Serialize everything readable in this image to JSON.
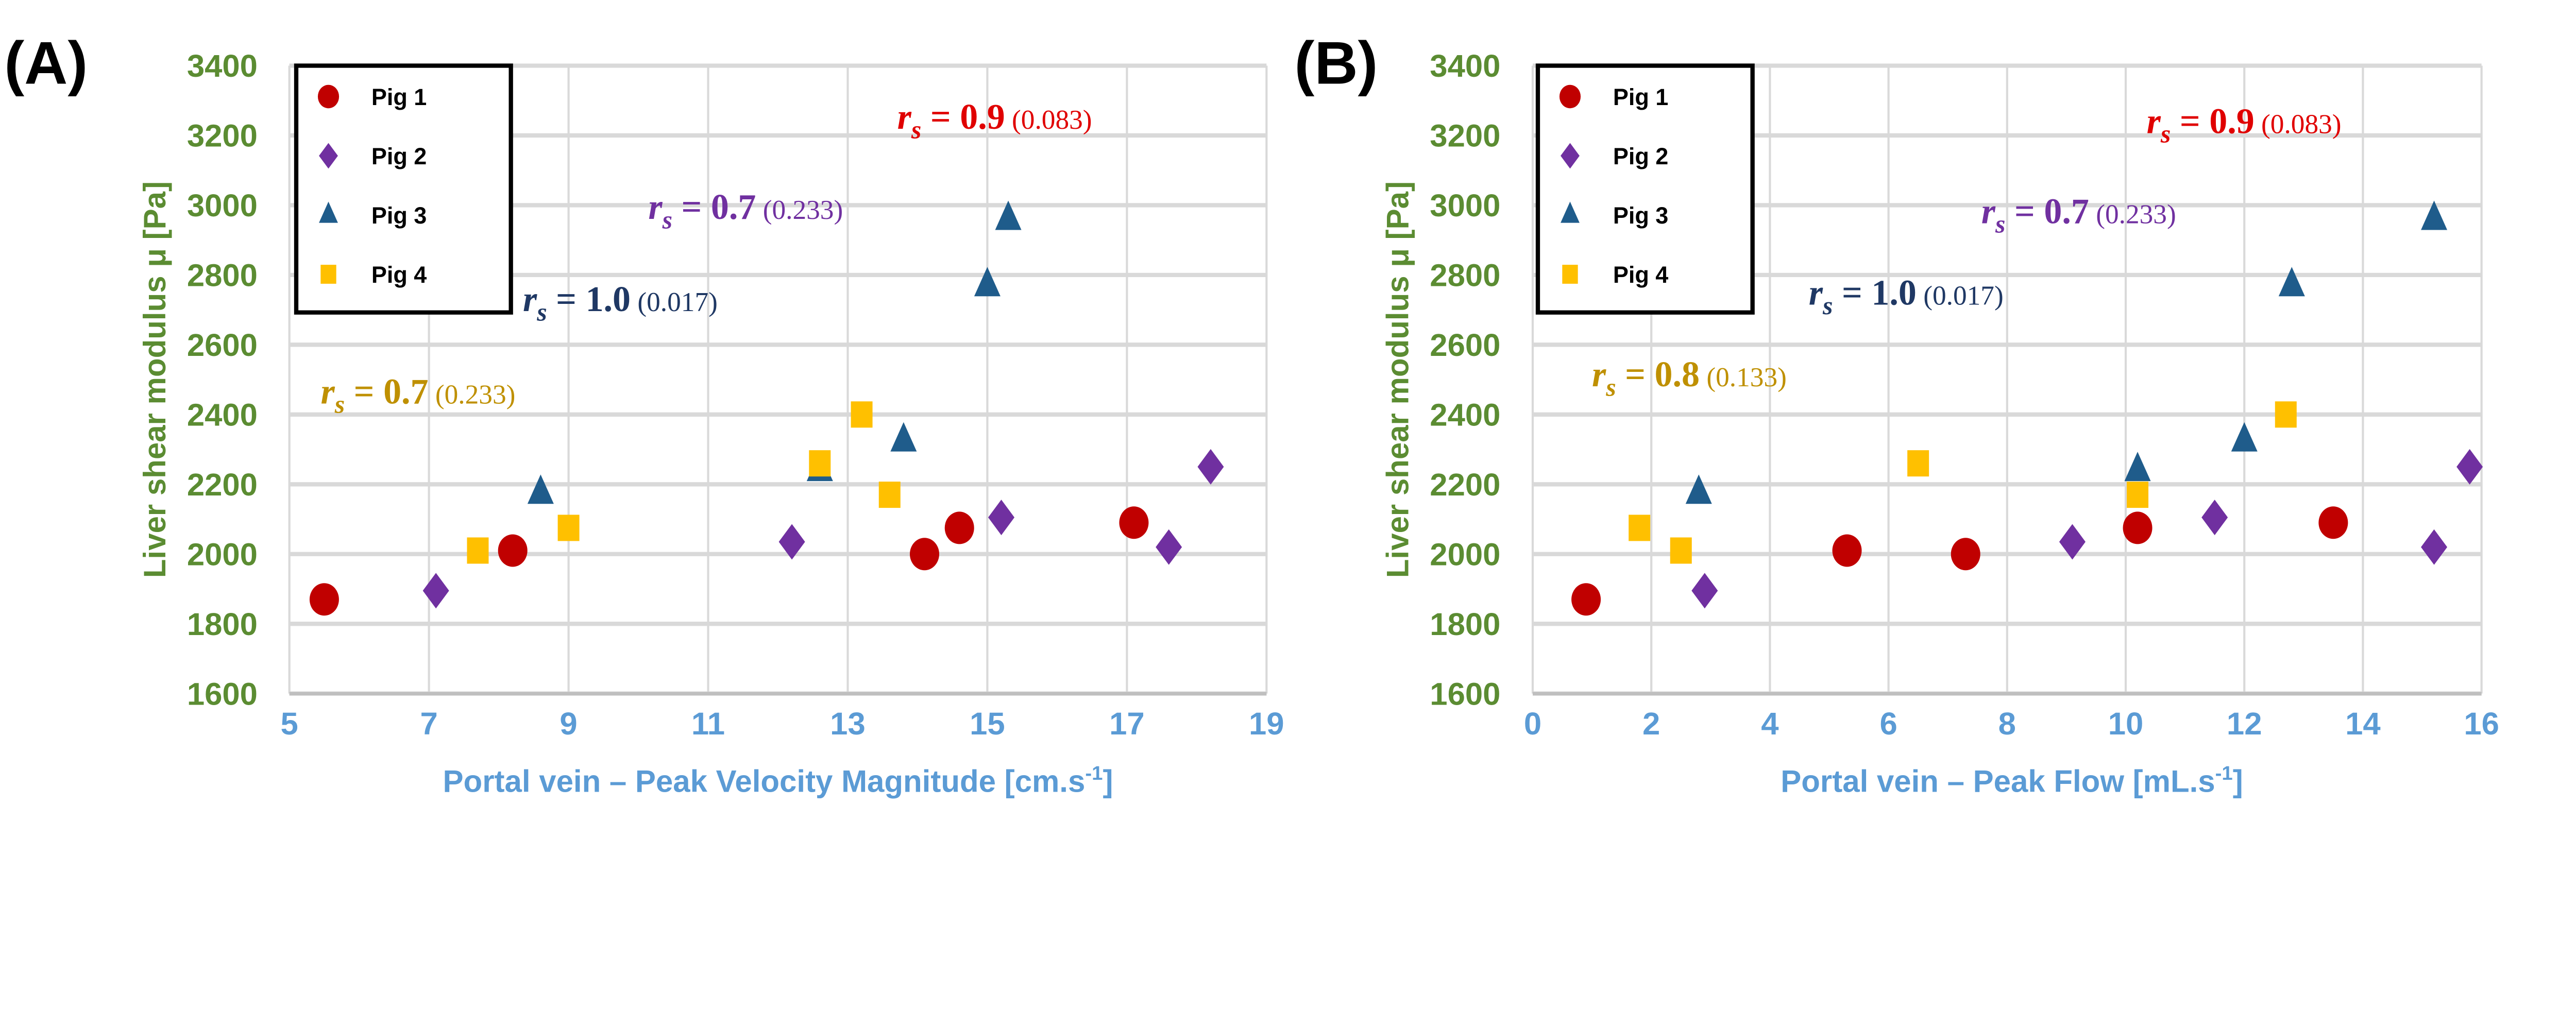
{
  "colors": {
    "Pig 1": "#C00000",
    "Pig 2": "#7030A0",
    "Pig 3": "#1F5C8B",
    "Pig 4": "#FFC000"
  },
  "markers": {
    "Pig 1": "circle",
    "Pig 2": "diamond",
    "Pig 3": "triangle",
    "Pig 4": "square"
  },
  "chart_data": [
    {
      "type": "scatter",
      "panel_label": "(A)",
      "xlabel": "Portal vein – Peak Velocity Magnitude [cm.s",
      "xlabel_sup": "-1",
      "xlabel_end": "]",
      "ylabel": "Liver shear modulus μ [Pa]",
      "xlim": [
        5,
        19
      ],
      "ylim": [
        1600,
        3400
      ],
      "xticks": [
        5,
        7,
        9,
        11,
        13,
        15,
        17,
        19
      ],
      "yticks": [
        1600,
        1800,
        2000,
        2200,
        2400,
        2600,
        2800,
        3000,
        3200,
        3400
      ],
      "grid": true,
      "legend": "top-left",
      "series": [
        {
          "name": "Pig 1",
          "x": [
            5.5,
            8.2,
            14.1,
            14.6,
            17.1
          ],
          "y": [
            1870,
            2010,
            2000,
            2075,
            2090
          ]
        },
        {
          "name": "Pig 2",
          "x": [
            7.1,
            12.2,
            15.2,
            17.6,
            18.2
          ],
          "y": [
            1895,
            2035,
            2105,
            2020,
            2250
          ]
        },
        {
          "name": "Pig 3",
          "x": [
            8.6,
            12.6,
            13.8,
            15.0,
            15.3
          ],
          "y": [
            2175,
            2240,
            2325,
            2770,
            2960
          ]
        },
        {
          "name": "Pig 4",
          "x": [
            7.7,
            9.0,
            12.6,
            13.2,
            13.6
          ],
          "y": [
            2010,
            2075,
            2260,
            2400,
            2170
          ]
        }
      ],
      "annotations": [
        {
          "series": "Pig 1",
          "var": "r",
          "sub": "s",
          "eq": " = ",
          "val": "0.9",
          "p": " (0.083)",
          "color": "#E00000"
        },
        {
          "series": "Pig 2",
          "var": "r",
          "sub": "s",
          "eq": " = ",
          "val": "0.7",
          "p": " (0.233)",
          "color": "#7030A0"
        },
        {
          "series": "Pig 3",
          "var": "r",
          "sub": "s",
          "eq": " = ",
          "val": "1.0",
          "p": " (0.017)",
          "color": "#1F3864"
        },
        {
          "series": "Pig 4",
          "var": "r",
          "sub": "s",
          "eq": " = ",
          "val": "0.7",
          "p": " (0.233)",
          "color": "#BF9000"
        }
      ]
    },
    {
      "type": "scatter",
      "panel_label": "(B)",
      "xlabel": "Portal vein – Peak Flow [mL.s",
      "xlabel_sup": "-1",
      "xlabel_end": "]",
      "ylabel": "Liver shear modulus μ [Pa]",
      "xlim": [
        0,
        16
      ],
      "ylim": [
        1600,
        3400
      ],
      "xticks": [
        0,
        2,
        4,
        6,
        8,
        10,
        12,
        14,
        16
      ],
      "yticks": [
        1600,
        1800,
        2000,
        2200,
        2400,
        2600,
        2800,
        3000,
        3200,
        3400
      ],
      "grid": true,
      "legend": "top-left",
      "series": [
        {
          "name": "Pig 1",
          "x": [
            0.9,
            5.3,
            7.3,
            10.2,
            13.5
          ],
          "y": [
            1870,
            2010,
            2000,
            2075,
            2090
          ]
        },
        {
          "name": "Pig 2",
          "x": [
            2.9,
            9.1,
            11.5,
            15.2,
            15.8
          ],
          "y": [
            1895,
            2035,
            2105,
            2020,
            2250
          ]
        },
        {
          "name": "Pig 3",
          "x": [
            2.8,
            10.2,
            12.0,
            12.8,
            15.2
          ],
          "y": [
            2175,
            2240,
            2325,
            2770,
            2960
          ]
        },
        {
          "name": "Pig 4",
          "x": [
            1.8,
            2.5,
            6.5,
            10.2,
            12.7
          ],
          "y": [
            2075,
            2010,
            2260,
            2170,
            2400
          ]
        }
      ],
      "annotations": [
        {
          "series": "Pig 1",
          "var": "r",
          "sub": "s",
          "eq": " = ",
          "val": "0.9",
          "p": " (0.083)",
          "color": "#E00000"
        },
        {
          "series": "Pig 2",
          "var": "r",
          "sub": "s",
          "eq": " = ",
          "val": "0.7",
          "p": " (0.233)",
          "color": "#7030A0"
        },
        {
          "series": "Pig 3",
          "var": "r",
          "sub": "s",
          "eq": " = ",
          "val": "1.0",
          "p": " (0.017)",
          "color": "#1F3864"
        },
        {
          "series": "Pig 4",
          "var": "r",
          "sub": "s",
          "eq": " = ",
          "val": "0.8",
          "p": " (0.133)",
          "color": "#BF9000"
        }
      ]
    }
  ]
}
